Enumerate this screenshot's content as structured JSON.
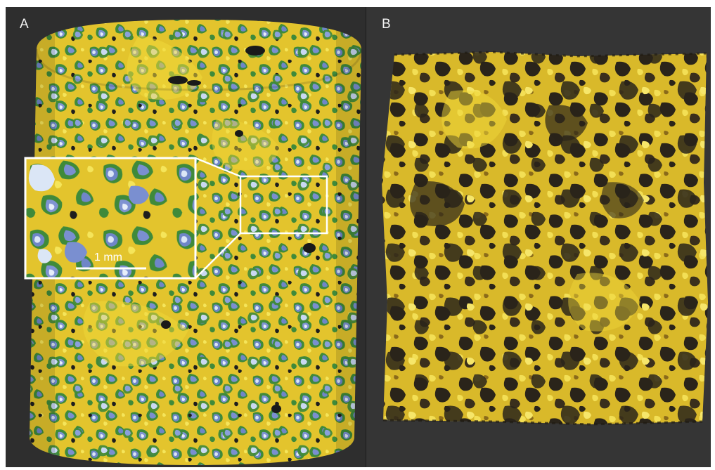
{
  "panels": [
    {
      "label": "A"
    },
    {
      "label": "B"
    }
  ],
  "inset": {
    "scale_label": "1 mm"
  },
  "colors": {
    "background": "#2c2c2c",
    "solid": "#e3c42d",
    "solid_light": "#f5e55a",
    "interface": "#3f8a3a",
    "pore": "#6f86c8",
    "pore_light": "#dbe6f6",
    "void": "#1e1e1e",
    "panel_b_solid": "#d9b92a"
  }
}
